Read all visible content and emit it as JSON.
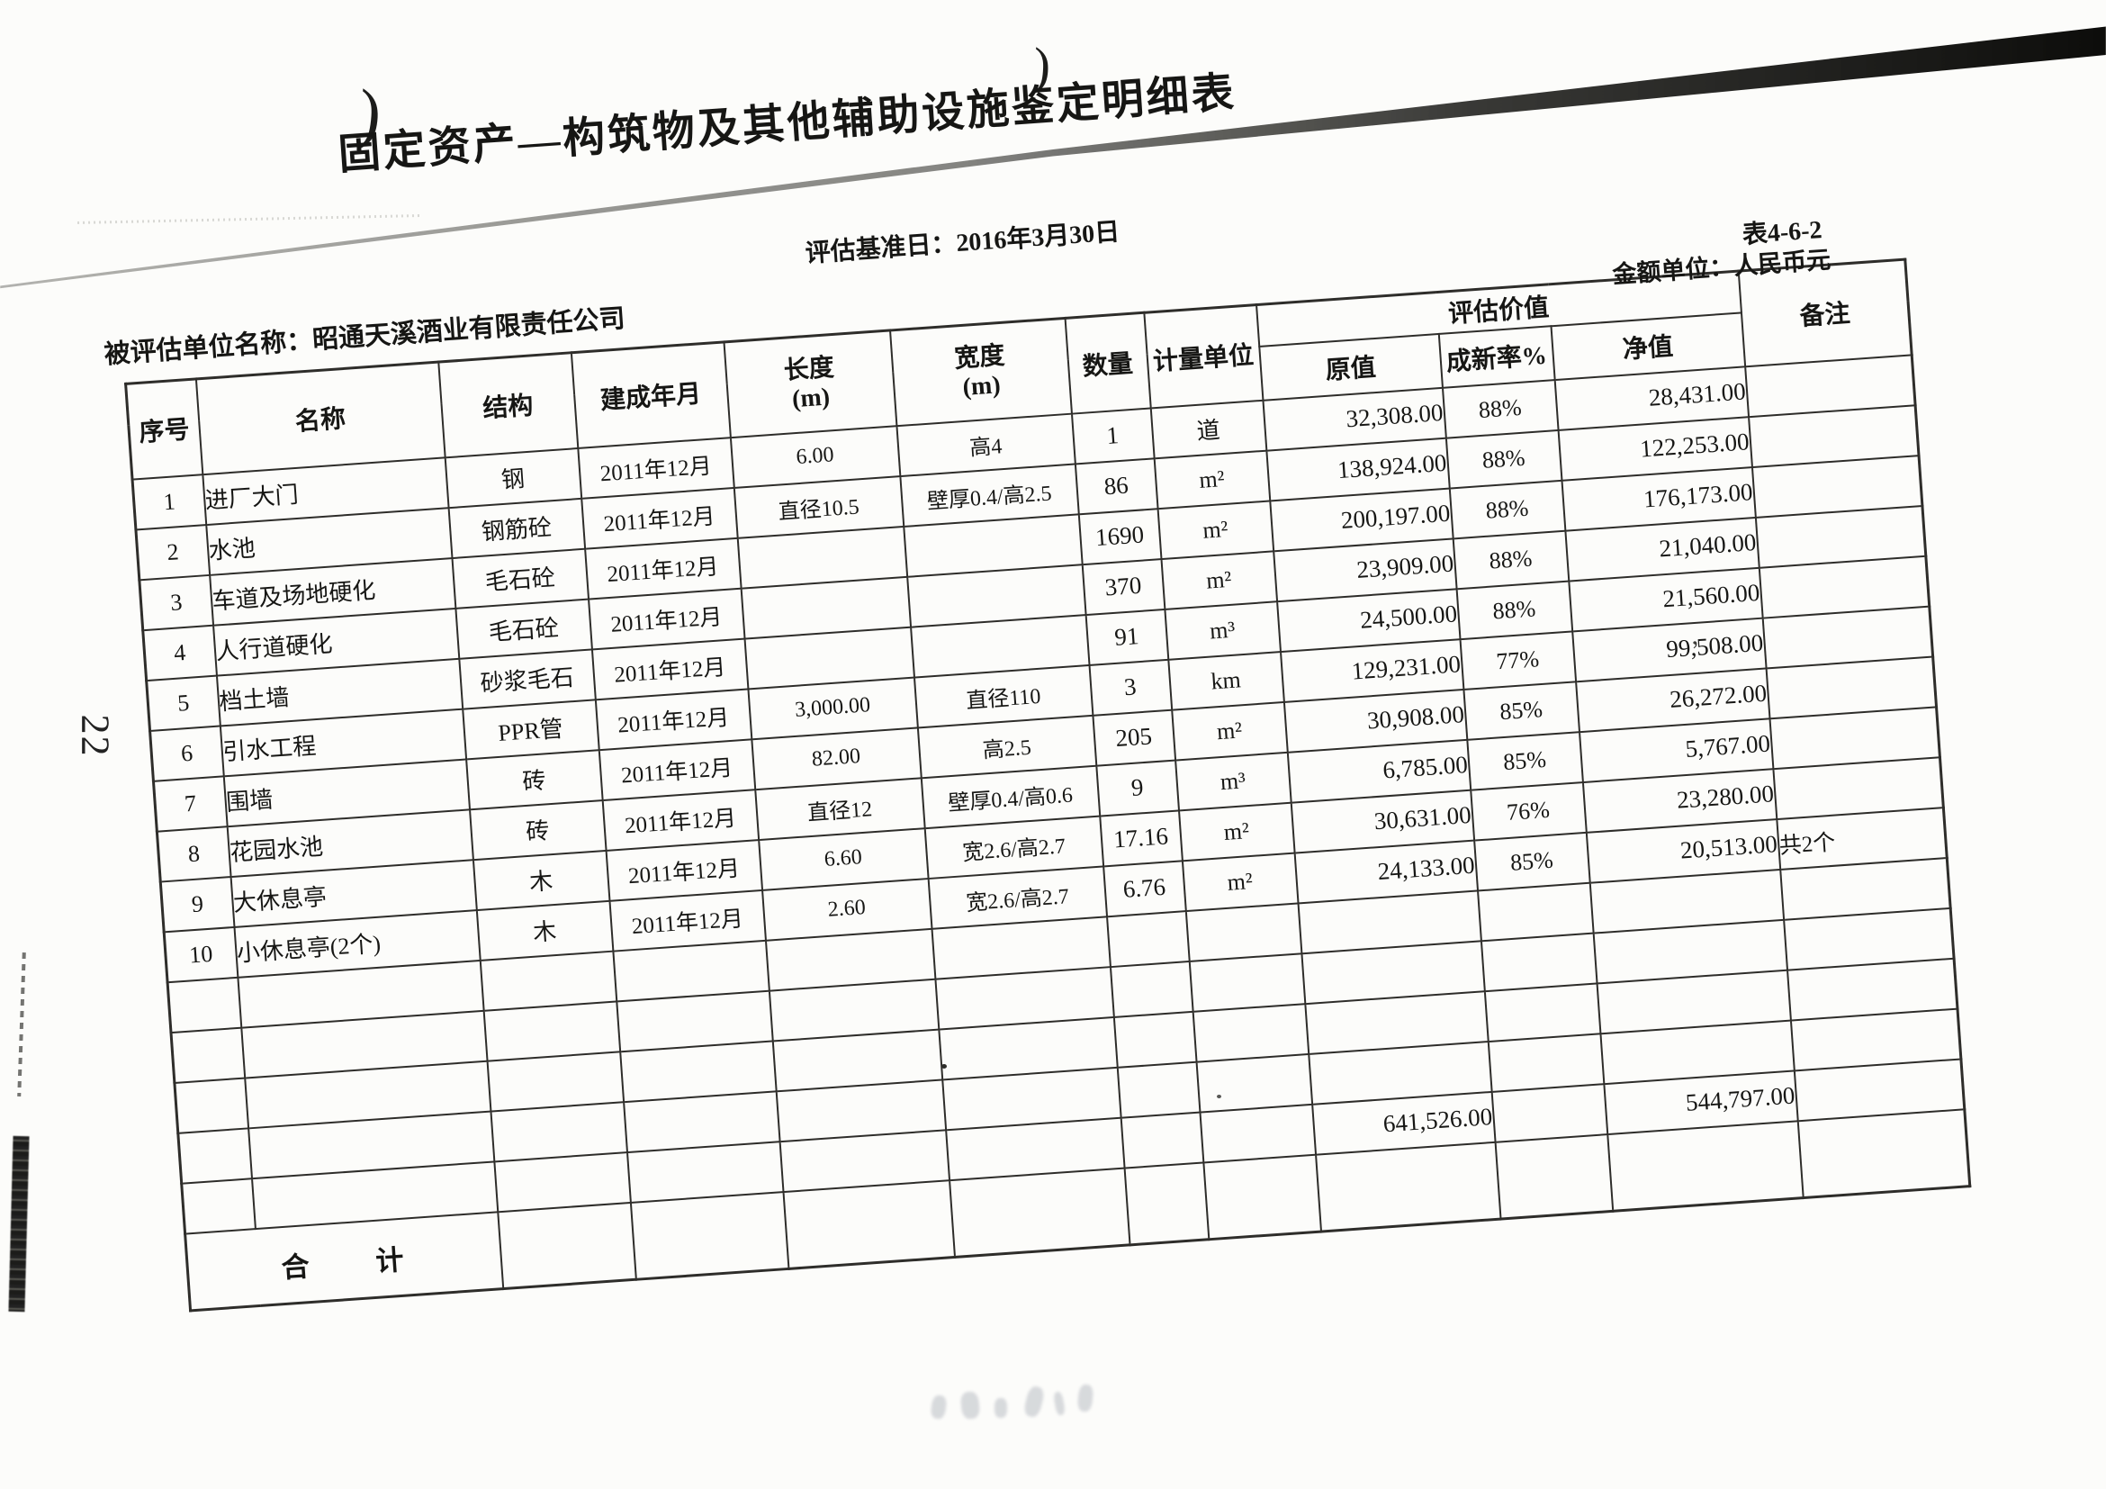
{
  "page": {
    "title": "固定资产—构筑物及其他辅助设施鉴定明细表",
    "subtitle": "评估基准日：2016年3月30日",
    "table_code": "表4-6-2",
    "unit_note": "金额单位：人民币元",
    "entity_line": "被评估单位名称：昭通天溪酒业有限责任公司",
    "page_number": "22"
  },
  "artifacts": {
    "paren_mark_1": ")",
    "paren_mark_2": ")"
  },
  "table": {
    "headers": {
      "seq": "序号",
      "name": "名称",
      "structure": "结构",
      "built": "建成年月",
      "length": "长度",
      "length_unit": "(m)",
      "width": "宽度",
      "width_unit": "(m)",
      "qty": "数量",
      "unit": "计量单位",
      "appraisal_group": "评估价值",
      "original": "原值",
      "rate": "成新率%",
      "net": "净值",
      "remark": "备注"
    },
    "rows": [
      {
        "seq": "1",
        "name": "进厂大门",
        "structure": "钢",
        "built": "2011年12月",
        "length": "6.00",
        "width": "高4",
        "qty": "1",
        "unit": "道",
        "original": "32,308.00",
        "rate": "88%",
        "net": "28,431.00",
        "remark": ""
      },
      {
        "seq": "2",
        "name": "水池",
        "structure": "钢筋砼",
        "built": "2011年12月",
        "length": "直径10.5",
        "width": "壁厚0.4/高2.5",
        "qty": "86",
        "unit": "m²",
        "original": "138,924.00",
        "rate": "88%",
        "net": "122,253.00",
        "remark": ""
      },
      {
        "seq": "3",
        "name": "车道及场地硬化",
        "structure": "毛石砼",
        "built": "2011年12月",
        "length": "",
        "width": "",
        "qty": "1690",
        "unit": "m²",
        "original": "200,197.00",
        "rate": "88%",
        "net": "176,173.00",
        "remark": ""
      },
      {
        "seq": "4",
        "name": "人行道硬化",
        "structure": "毛石砼",
        "built": "2011年12月",
        "length": "",
        "width": "",
        "qty": "370",
        "unit": "m²",
        "original": "23,909.00",
        "rate": "88%",
        "net": "21,040.00",
        "remark": ""
      },
      {
        "seq": "5",
        "name": "档土墙",
        "structure": "砂浆毛石",
        "built": "2011年12月",
        "length": "",
        "width": "",
        "qty": "91",
        "unit": "m³",
        "original": "24,500.00",
        "rate": "88%",
        "net": "21,560.00",
        "remark": ""
      },
      {
        "seq": "6",
        "name": "引水工程",
        "structure": "PPR管",
        "built": "2011年12月",
        "length": "3,000.00",
        "width": "直径110",
        "qty": "3",
        "unit": "km",
        "original": "129,231.00",
        "rate": "77%",
        "net": "99,508.00",
        "remark": ""
      },
      {
        "seq": "7",
        "name": "围墙",
        "structure": "砖",
        "built": "2011年12月",
        "length": "82.00",
        "width": "高2.5",
        "qty": "205",
        "unit": "m²",
        "original": "30,908.00",
        "rate": "85%",
        "net": "26,272.00",
        "remark": ""
      },
      {
        "seq": "8",
        "name": "花园水池",
        "structure": "砖",
        "built": "2011年12月",
        "length": "直径12",
        "width": "壁厚0.4/高0.6",
        "qty": "9",
        "unit": "m³",
        "original": "6,785.00",
        "rate": "85%",
        "net": "5,767.00",
        "remark": ""
      },
      {
        "seq": "9",
        "name": "大休息亭",
        "structure": "木",
        "built": "2011年12月",
        "length": "6.60",
        "width": "宽2.6/高2.7",
        "qty": "17.16",
        "unit": "m²",
        "original": "30,631.00",
        "rate": "76%",
        "net": "23,280.00",
        "remark": ""
      },
      {
        "seq": "10",
        "name": "小休息亭(2个)",
        "structure": "木",
        "built": "2011年12月",
        "length": "2.60",
        "width": "宽2.6/高2.7",
        "qty": "6.76",
        "unit": "m²",
        "original": "24,133.00",
        "rate": "85%",
        "net": "20,513.00",
        "remark": "共2个"
      }
    ],
    "empty_row_count": 4,
    "total_row": {
      "original": "641,526.00",
      "net": "544,797.00"
    },
    "footer_label": "合　　计"
  }
}
